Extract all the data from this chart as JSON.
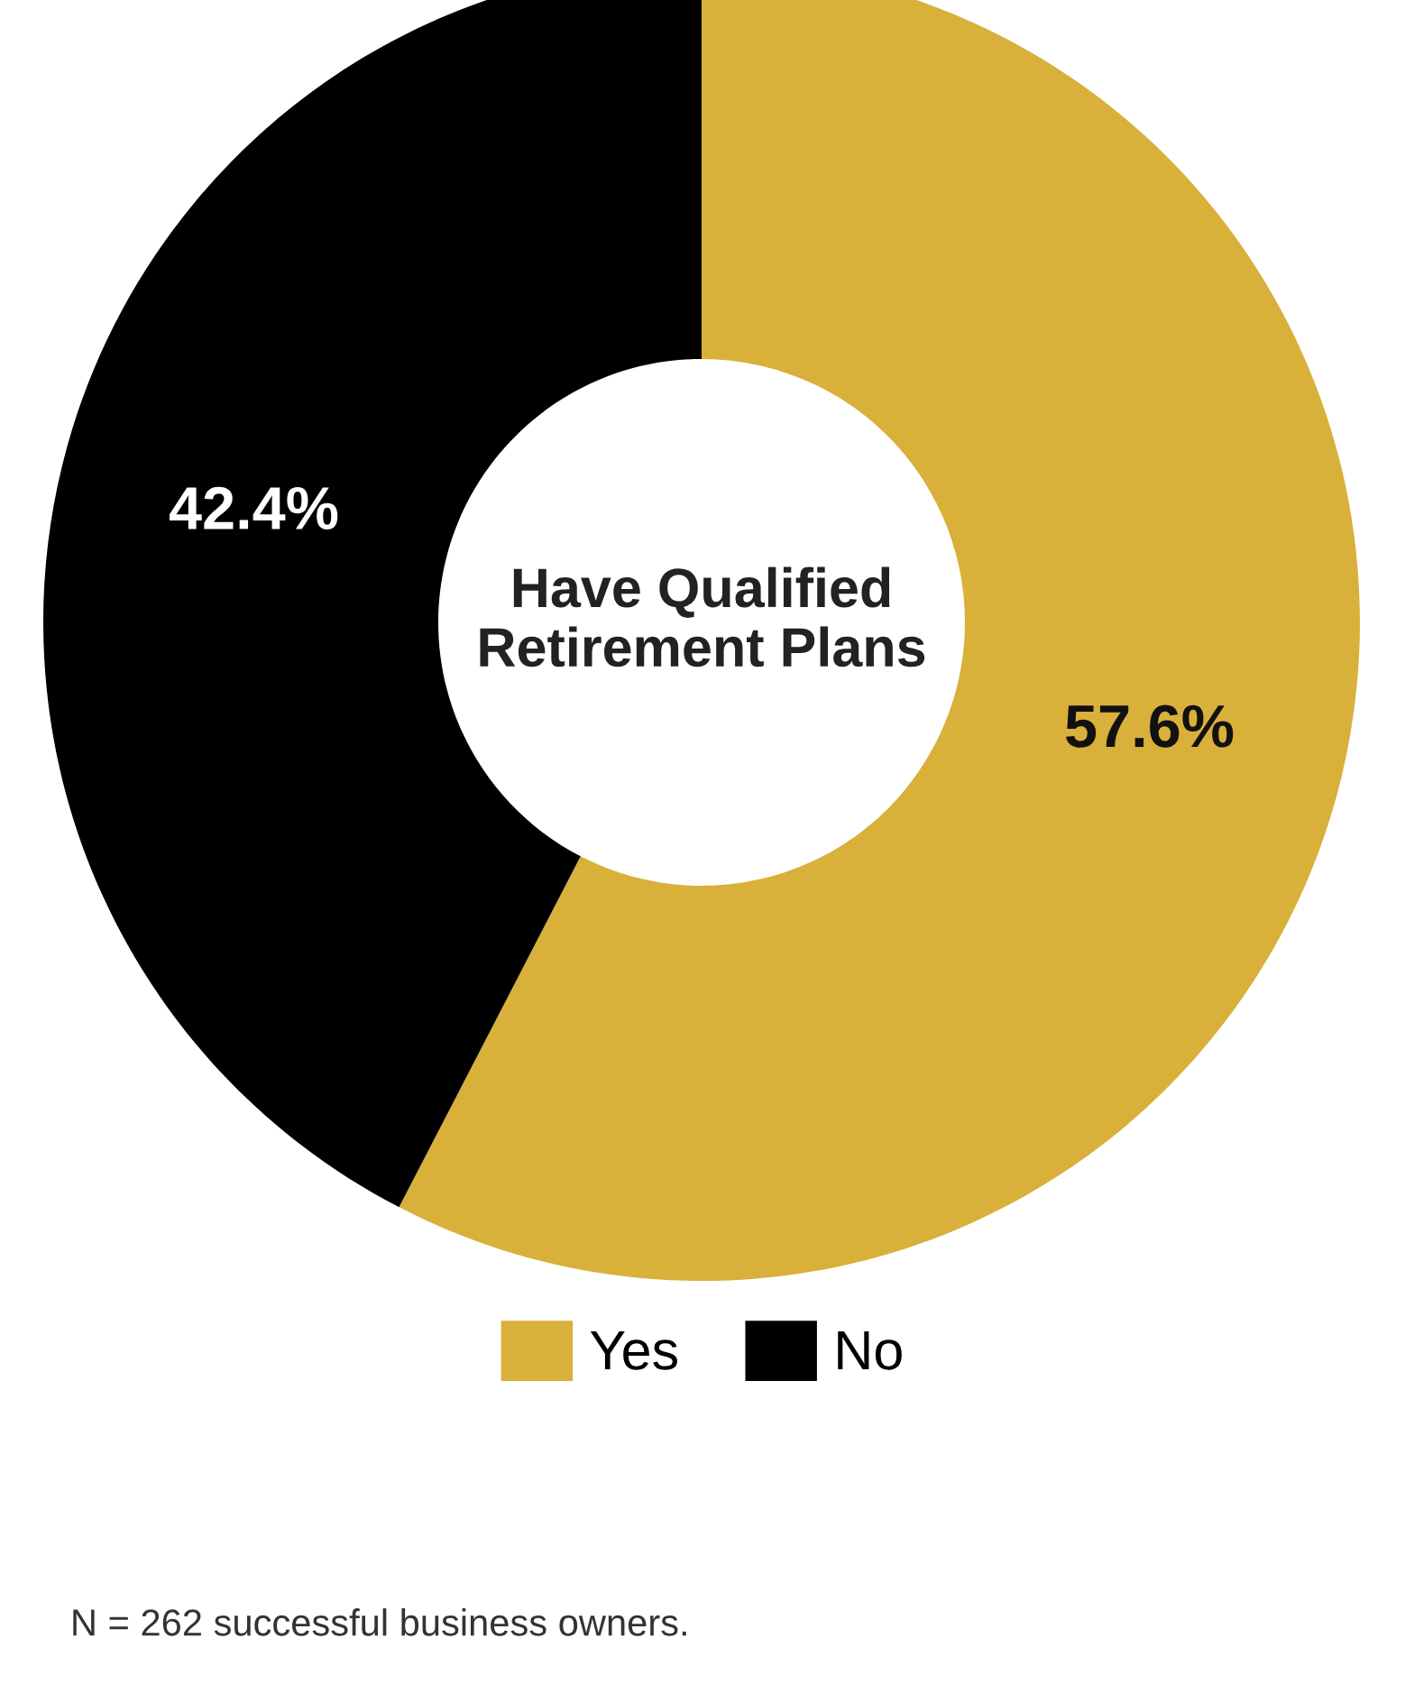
{
  "chart_data": {
    "type": "donut",
    "title": "Have Qualified\nRetirement Plans",
    "categories": [
      "Yes",
      "No"
    ],
    "values": [
      57.6,
      42.4
    ],
    "colors": [
      "#d8b03a",
      "#000000"
    ],
    "value_labels": [
      "57.6%",
      "42.4%"
    ],
    "legend": "bottom",
    "annotations": [
      "N = 262 successful business owners."
    ]
  }
}
